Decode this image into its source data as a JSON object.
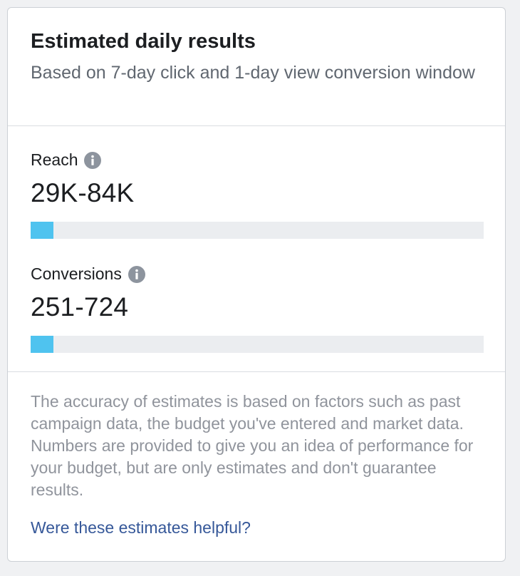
{
  "card": {
    "title": "Estimated daily results",
    "subtitle": "Based on 7-day click and 1-day view conversion window"
  },
  "metrics": [
    {
      "label": "Reach",
      "value": "29K-84K",
      "icon": "info-icon",
      "bar_fill_fraction": 0.05
    },
    {
      "label": "Conversions",
      "value": "251-724",
      "icon": "info-icon",
      "bar_fill_fraction": 0.05
    }
  ],
  "footer": {
    "disclaimer": "The accuracy of estimates is based on factors such as past campaign data, the budget you've entered and market data. Numbers are provided to give you an idea of performance for your budget, but are only estimates and don't guarantee results.",
    "helpful_link": "Were these estimates helpful?"
  },
  "colors": {
    "bar_fill": "#4fc3ef",
    "bar_track": "#ebedf0",
    "link": "#365899",
    "muted_text": "#90949c",
    "icon": "#8d949e"
  }
}
